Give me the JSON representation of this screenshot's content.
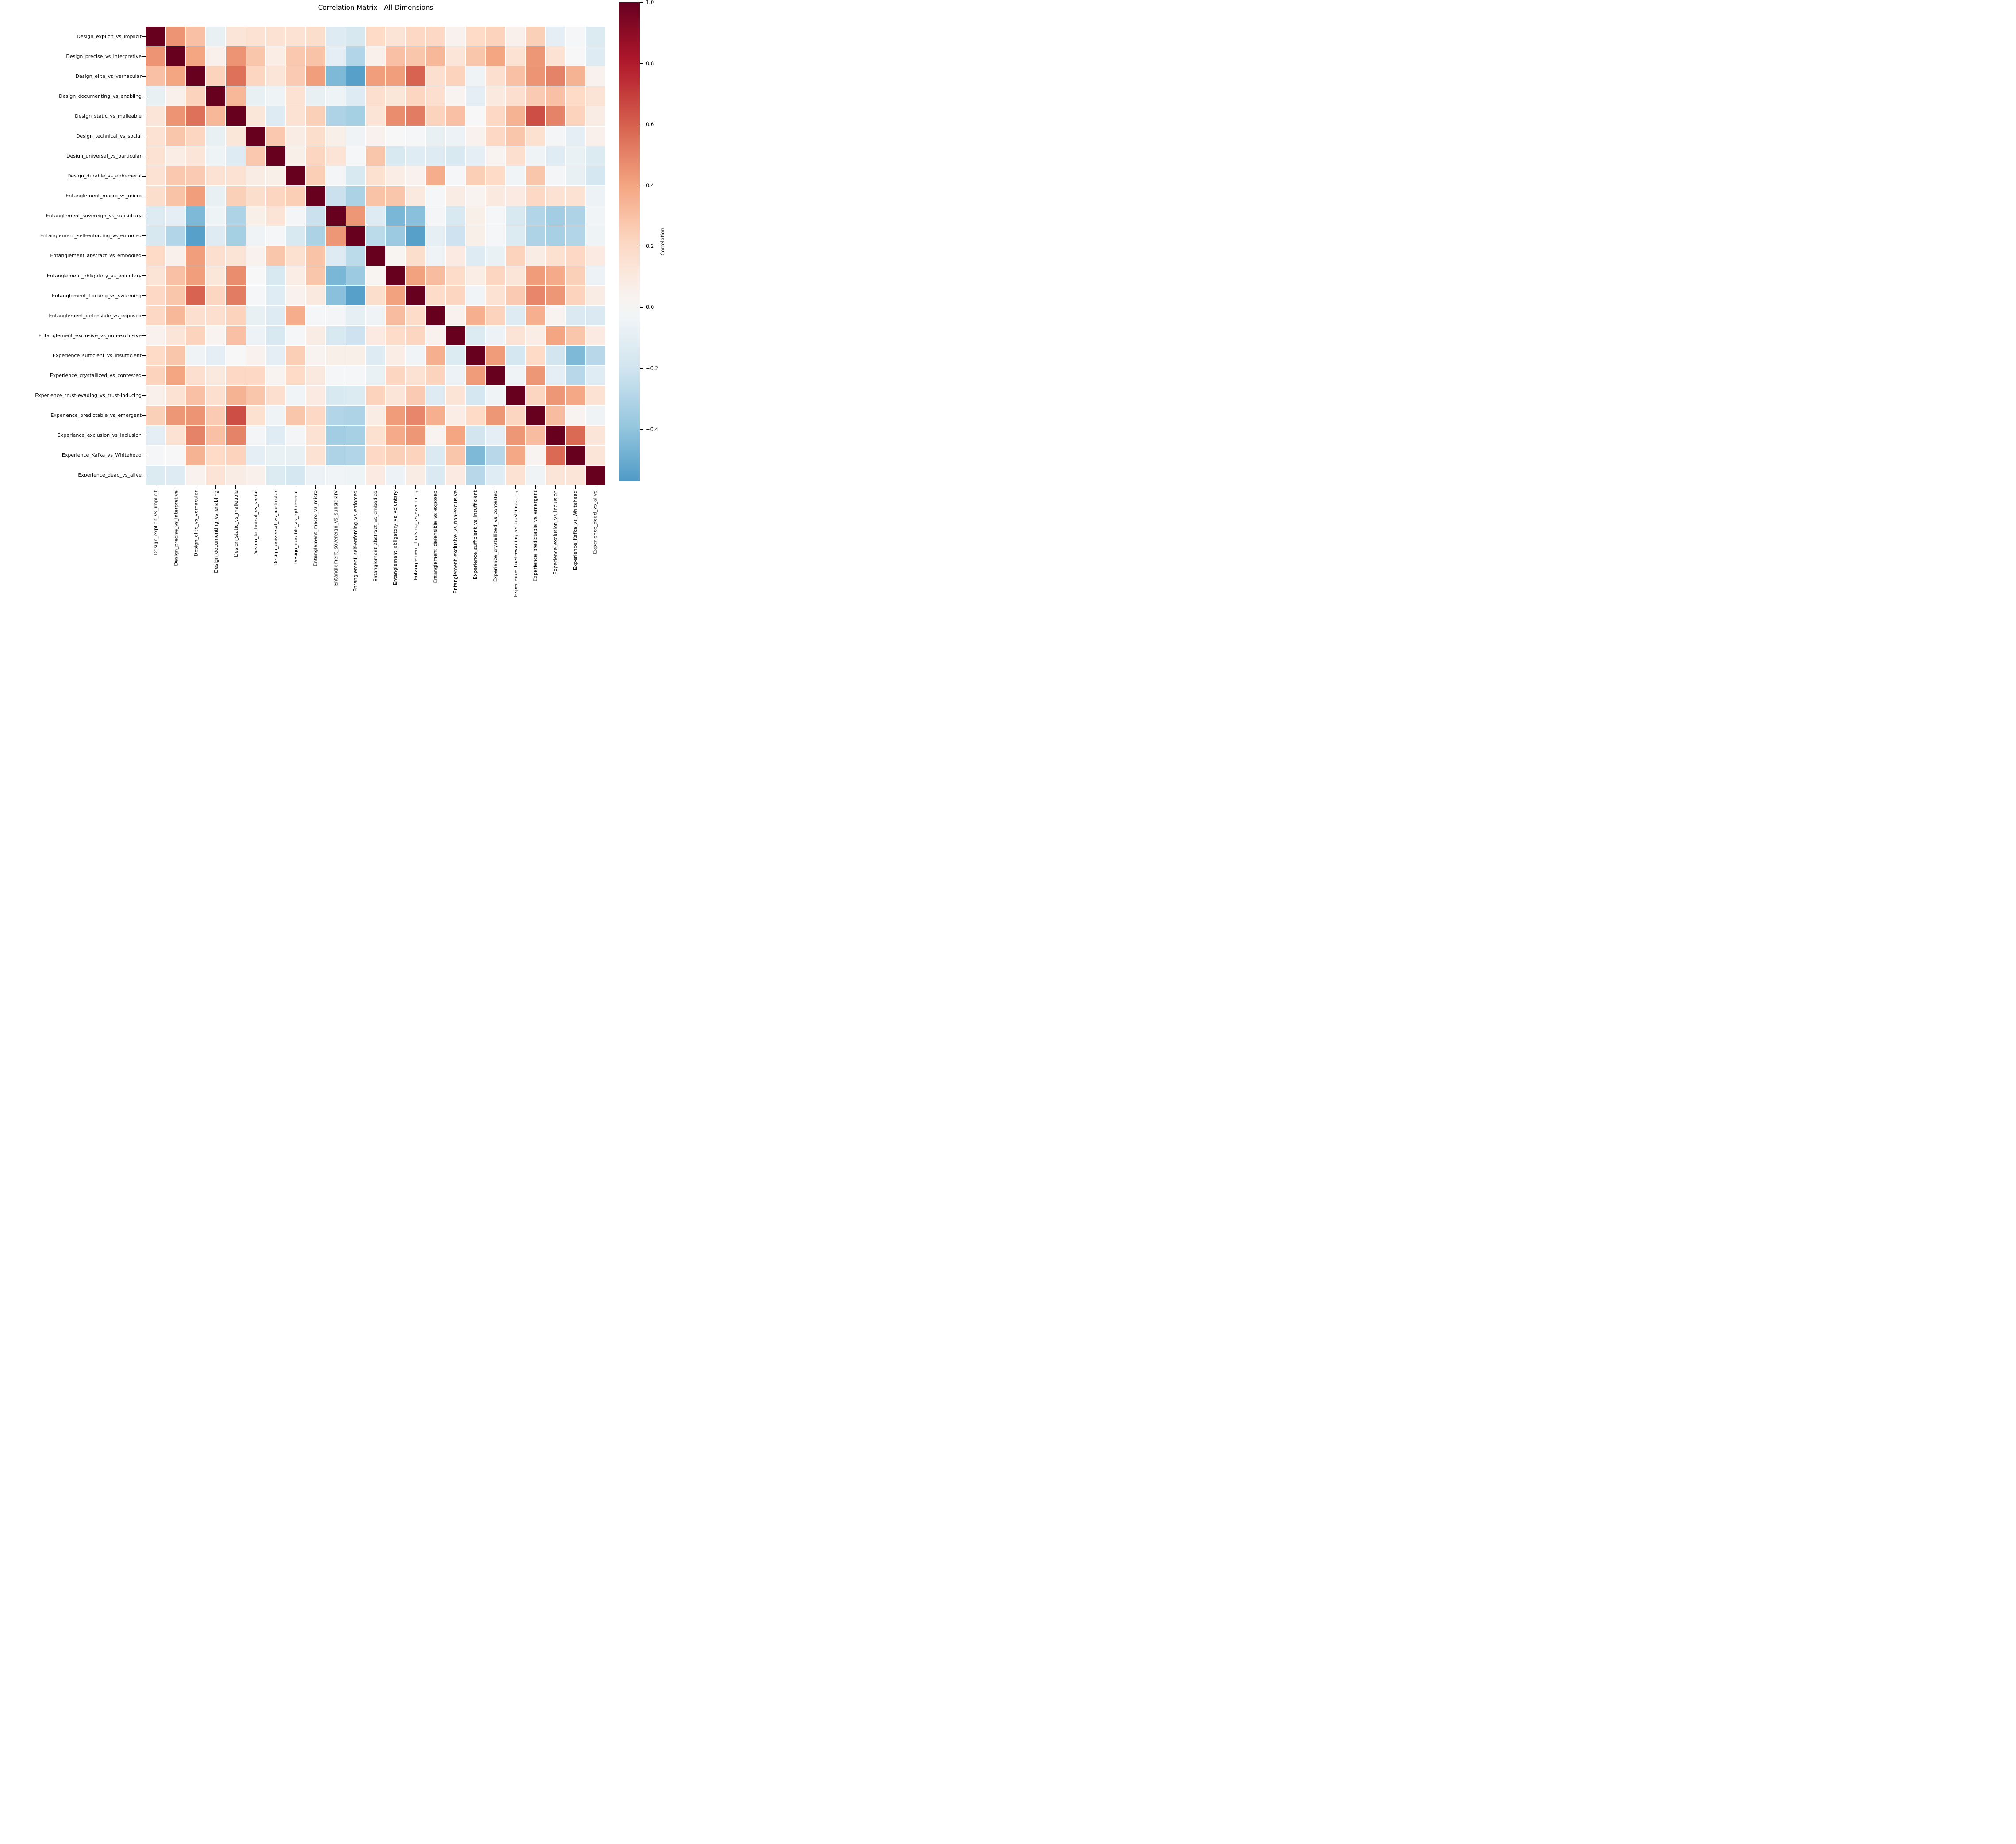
{
  "title": "Correlation Matrix - All Dimensions",
  "colorbar": {
    "label": "Correlation",
    "tick_labels": [
      "1.0",
      "0.8",
      "0.6",
      "0.4",
      "0.2",
      "0.0",
      "−0.2",
      "−0.4"
    ],
    "tick_values": [
      1.0,
      0.8,
      0.6,
      0.4,
      0.2,
      0.0,
      -0.2,
      -0.4
    ]
  },
  "chart_data": {
    "type": "heatmap",
    "title": "Correlation Matrix - All Dimensions",
    "xlabel": "",
    "ylabel": "",
    "legend_position": "right-colorbar",
    "grid": "white-cell-borders",
    "colormap": "RdBu_r",
    "center": 0,
    "vmin": -0.57,
    "vmax": 1.0,
    "colormap_stops": [
      "#053061",
      "#2166ac",
      "#4393c3",
      "#92c5de",
      "#d1e5f0",
      "#f7f7f7",
      "#fddbc7",
      "#f4a582",
      "#d6604d",
      "#b2182b",
      "#67001f"
    ],
    "categories": [
      "Design_explicit_vs_implicit",
      "Design_precise_vs_interpretive",
      "Design_elite_vs_vernacular",
      "Design_documenting_vs_enabling",
      "Design_static_vs_malleable",
      "Design_technical_vs_social",
      "Design_universal_vs_particular",
      "Design_durable_vs_ephemeral",
      "Entanglement_macro_vs_micro",
      "Entanglement_sovereign_vs_subsidiary",
      "Entanglement_self-enforcing_vs_enforced",
      "Entanglement_abstract_vs_embodied",
      "Entanglement_obligatory_vs_voluntary",
      "Entanglement_flocking_vs_swarming",
      "Entanglement_defensible_vs_exposed",
      "Entanglement_exclusive_vs_non-exclusive",
      "Experience_sufficient_vs_insufficient",
      "Experience_crystallized_vs_contested",
      "Experience_trust-evading_vs_trust-inducing",
      "Experience_predictable_vs_emergent",
      "Experience_exclusion_vs_inclusion",
      "Experience_Kafka_vs_Whitehead",
      "Experience_dead_vs_alive"
    ],
    "matrix": [
      [
        1.0,
        0.45,
        0.3,
        -0.08,
        0.13,
        0.15,
        0.15,
        0.15,
        0.18,
        -0.13,
        -0.17,
        0.2,
        0.14,
        0.21,
        0.21,
        0.04,
        0.2,
        0.23,
        0.05,
        0.24,
        -0.1,
        -0.01,
        -0.14
      ],
      [
        0.45,
        1.0,
        0.4,
        0.05,
        0.45,
        0.28,
        0.07,
        0.27,
        0.29,
        -0.1,
        -0.3,
        0.05,
        0.3,
        0.28,
        0.33,
        0.13,
        0.28,
        0.4,
        0.15,
        0.44,
        0.15,
        0.0,
        -0.13
      ],
      [
        0.3,
        0.4,
        1.0,
        0.23,
        0.55,
        0.22,
        0.13,
        0.26,
        0.42,
        -0.45,
        -0.55,
        0.42,
        0.42,
        0.59,
        0.17,
        0.23,
        -0.04,
        0.17,
        0.3,
        0.45,
        0.5,
        0.35,
        0.04
      ],
      [
        -0.08,
        0.05,
        0.23,
        1.0,
        0.33,
        -0.08,
        -0.05,
        0.15,
        -0.08,
        -0.05,
        -0.13,
        0.17,
        0.12,
        0.22,
        0.17,
        0.03,
        -0.1,
        0.1,
        0.17,
        0.26,
        0.3,
        0.2,
        0.14
      ],
      [
        0.13,
        0.45,
        0.55,
        0.33,
        1.0,
        0.12,
        -0.13,
        0.15,
        0.24,
        -0.31,
        -0.34,
        0.14,
        0.47,
        0.52,
        0.23,
        0.3,
        0.0,
        0.21,
        0.35,
        0.65,
        0.5,
        0.23,
        0.08
      ],
      [
        0.15,
        0.28,
        0.22,
        -0.08,
        0.12,
        1.0,
        0.27,
        0.08,
        0.18,
        0.06,
        -0.04,
        0.04,
        0.0,
        -0.01,
        -0.08,
        -0.06,
        0.04,
        0.21,
        0.28,
        0.16,
        -0.02,
        -0.1,
        0.05
      ],
      [
        0.15,
        0.07,
        0.13,
        -0.05,
        -0.13,
        0.27,
        1.0,
        0.06,
        0.22,
        0.14,
        -0.01,
        0.28,
        -0.16,
        -0.12,
        -0.13,
        -0.16,
        -0.1,
        0.03,
        0.17,
        -0.04,
        -0.12,
        -0.07,
        -0.14
      ],
      [
        0.15,
        0.27,
        0.26,
        0.15,
        0.15,
        0.08,
        0.06,
        1.0,
        0.25,
        -0.02,
        -0.16,
        0.16,
        0.07,
        0.04,
        0.37,
        -0.01,
        0.25,
        0.2,
        -0.03,
        0.28,
        -0.02,
        -0.08,
        -0.18
      ],
      [
        0.18,
        0.29,
        0.42,
        -0.08,
        0.24,
        0.18,
        0.22,
        0.25,
        1.0,
        -0.22,
        -0.32,
        0.29,
        0.28,
        0.1,
        -0.01,
        0.08,
        0.03,
        0.1,
        0.09,
        0.21,
        0.15,
        0.15,
        -0.06
      ],
      [
        -0.13,
        -0.1,
        -0.45,
        -0.05,
        -0.31,
        0.06,
        0.14,
        -0.02,
        -0.22,
        1.0,
        0.44,
        -0.13,
        -0.46,
        -0.42,
        -0.02,
        -0.16,
        0.06,
        -0.01,
        -0.16,
        -0.3,
        -0.35,
        -0.31,
        -0.03
      ],
      [
        -0.17,
        -0.3,
        -0.55,
        -0.13,
        -0.34,
        -0.04,
        -0.01,
        -0.16,
        -0.32,
        0.44,
        1.0,
        -0.27,
        -0.37,
        -0.55,
        -0.09,
        -0.21,
        0.06,
        -0.01,
        -0.14,
        -0.31,
        -0.33,
        -0.3,
        -0.05
      ],
      [
        0.2,
        0.05,
        0.42,
        0.17,
        0.14,
        0.04,
        0.28,
        0.16,
        0.29,
        -0.13,
        -0.27,
        1.0,
        0.02,
        0.18,
        -0.04,
        0.09,
        -0.13,
        -0.07,
        0.23,
        0.08,
        0.16,
        0.21,
        0.09
      ],
      [
        0.14,
        0.3,
        0.42,
        0.12,
        0.47,
        0.0,
        -0.16,
        0.07,
        0.28,
        -0.46,
        -0.37,
        0.02,
        1.0,
        0.41,
        0.31,
        0.19,
        0.07,
        0.22,
        0.13,
        0.43,
        0.38,
        0.24,
        -0.06
      ],
      [
        0.21,
        0.28,
        0.59,
        0.22,
        0.52,
        -0.01,
        -0.12,
        0.04,
        0.1,
        -0.42,
        -0.55,
        0.18,
        0.41,
        1.0,
        0.19,
        0.22,
        -0.03,
        0.15,
        0.26,
        0.49,
        0.44,
        0.23,
        0.08
      ],
      [
        0.21,
        0.33,
        0.17,
        0.17,
        0.23,
        -0.08,
        -0.13,
        0.37,
        -0.01,
        -0.02,
        -0.09,
        -0.04,
        0.31,
        0.19,
        1.0,
        0.04,
        0.36,
        0.23,
        -0.13,
        0.36,
        0.03,
        -0.15,
        -0.15
      ],
      [
        0.04,
        0.13,
        0.23,
        0.03,
        0.3,
        -0.06,
        -0.16,
        -0.01,
        0.08,
        -0.16,
        -0.21,
        0.09,
        0.19,
        0.22,
        0.04,
        1.0,
        -0.14,
        -0.06,
        0.14,
        0.07,
        0.4,
        0.28,
        0.09
      ],
      [
        0.2,
        0.28,
        -0.04,
        -0.1,
        0.0,
        0.04,
        -0.1,
        0.25,
        0.03,
        0.06,
        0.06,
        -0.13,
        0.07,
        -0.03,
        0.36,
        -0.14,
        1.0,
        0.43,
        -0.18,
        0.2,
        -0.19,
        -0.45,
        -0.28
      ],
      [
        0.23,
        0.4,
        0.17,
        0.1,
        0.21,
        0.21,
        0.03,
        0.2,
        0.1,
        -0.01,
        -0.01,
        -0.07,
        0.22,
        0.15,
        0.23,
        -0.06,
        0.43,
        1.0,
        -0.04,
        0.44,
        -0.1,
        -0.28,
        -0.12
      ],
      [
        0.05,
        0.15,
        0.3,
        0.17,
        0.35,
        0.28,
        0.17,
        -0.03,
        0.09,
        -0.16,
        -0.14,
        0.23,
        0.13,
        0.26,
        -0.13,
        0.14,
        -0.18,
        -0.04,
        1.0,
        0.22,
        0.44,
        0.39,
        0.15
      ],
      [
        0.24,
        0.44,
        0.45,
        0.26,
        0.65,
        0.16,
        -0.04,
        0.28,
        0.21,
        -0.3,
        -0.31,
        0.08,
        0.43,
        0.49,
        0.36,
        0.07,
        0.2,
        0.44,
        0.22,
        1.0,
        0.31,
        0.03,
        -0.04
      ],
      [
        -0.1,
        0.15,
        0.5,
        0.3,
        0.5,
        -0.02,
        -0.12,
        -0.02,
        0.15,
        -0.35,
        -0.33,
        0.16,
        0.38,
        0.44,
        0.03,
        0.4,
        -0.19,
        -0.1,
        0.44,
        0.31,
        1.0,
        0.57,
        0.13
      ],
      [
        -0.01,
        0.0,
        0.35,
        0.2,
        0.23,
        -0.1,
        -0.07,
        -0.08,
        0.15,
        -0.31,
        -0.3,
        0.21,
        0.24,
        0.23,
        -0.15,
        0.28,
        -0.45,
        -0.28,
        0.39,
        0.03,
        0.57,
        1.0,
        0.13
      ],
      [
        -0.14,
        -0.13,
        0.04,
        0.14,
        0.08,
        0.05,
        -0.14,
        -0.18,
        -0.06,
        -0.03,
        -0.05,
        0.09,
        -0.06,
        0.08,
        -0.15,
        0.09,
        -0.28,
        -0.12,
        0.15,
        -0.04,
        0.13,
        0.13,
        1.0
      ]
    ]
  }
}
